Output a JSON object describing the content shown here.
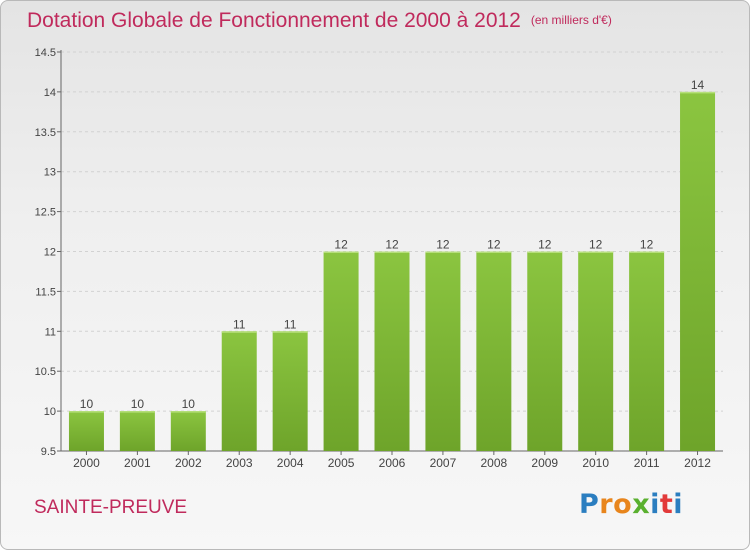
{
  "title": "Dotation Globale de Fonctionnement de 2000 à 2012",
  "subtitle": "(en milliers d'€)",
  "commune": "SAINTE-PREUVE",
  "logo": {
    "letters": [
      "P",
      "r",
      "o",
      "x",
      "i",
      "t",
      "i"
    ],
    "colors": [
      "#2b7ec0",
      "#e8851c",
      "#e8851c",
      "#5ab02f",
      "#2b7ec0",
      "#e23a3a",
      "#2b7ec0"
    ]
  },
  "chart_data": {
    "type": "bar",
    "categories": [
      "2000",
      "2001",
      "2002",
      "2003",
      "2004",
      "2005",
      "2006",
      "2007",
      "2008",
      "2009",
      "2010",
      "2011",
      "2012"
    ],
    "values": [
      10,
      10,
      10,
      11,
      11,
      12,
      12,
      12,
      12,
      12,
      12,
      12,
      14
    ],
    "value_labels": [
      "10",
      "10",
      "10",
      "11",
      "11",
      "12",
      "12",
      "12",
      "12",
      "12",
      "12",
      "12",
      "14"
    ],
    "ylim": [
      9.5,
      14.5
    ],
    "yticks": [
      9.5,
      10,
      10.5,
      11,
      11.5,
      12,
      12.5,
      13,
      13.5,
      14,
      14.5
    ],
    "ytick_labels": [
      "9.5",
      "10",
      "10.5",
      "11",
      "11.5",
      "12",
      "12.5",
      "13",
      "13.5",
      "14",
      "14.5"
    ],
    "xlabel": "",
    "ylabel": "",
    "grid": "horizontal",
    "bar_color": "#8bc540",
    "bar_color_dark": "#6ea42a"
  }
}
